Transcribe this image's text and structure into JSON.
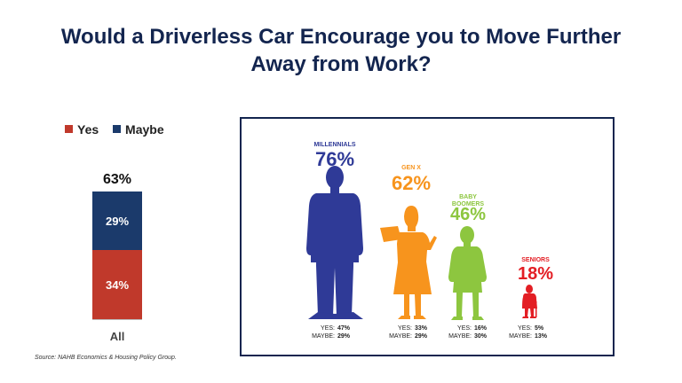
{
  "title_line1": "Would a Driverless Car Encourage you to Move Further",
  "title_line2": "Away from Work?",
  "legend": {
    "yes": "Yes",
    "maybe": "Maybe"
  },
  "colors": {
    "yes": "#c0392b",
    "maybe": "#1b3a6b",
    "millennials": "#2f3a97",
    "genx": "#f7941d",
    "boomers": "#8dc63f",
    "seniors": "#e31e24"
  },
  "bar": {
    "category": "All",
    "total_label": "63%",
    "yes_label": "34%",
    "maybe_label": "29%"
  },
  "source": "Source: NAHB Economics & Housing Policy Group.",
  "generations": [
    {
      "name_lines": [
        "MILLENNIALS"
      ],
      "pct": "76%",
      "yes_text": "47%",
      "maybe_text": "29%"
    },
    {
      "name_lines": [
        "GEN X"
      ],
      "pct": "62%",
      "yes_text": "33%",
      "maybe_text": "29%"
    },
    {
      "name_lines": [
        "BABY",
        "BOOMERS"
      ],
      "pct": "46%",
      "yes_text": "16%",
      "maybe_text": "30%"
    },
    {
      "name_lines": [
        "SENIORS"
      ],
      "pct": "18%",
      "yes_text": "5%",
      "maybe_text": "13%"
    }
  ],
  "stat_labels": {
    "yes": "YES:",
    "maybe": "MAYBE:"
  },
  "chart_data": [
    {
      "type": "bar",
      "stacked": true,
      "categories": [
        "All"
      ],
      "series": [
        {
          "name": "Yes",
          "values": [
            34
          ]
        },
        {
          "name": "Maybe",
          "values": [
            29
          ]
        }
      ],
      "total": [
        63
      ],
      "title": "",
      "xlabel": "",
      "ylabel": "",
      "ylim": [
        0,
        63
      ],
      "legend": "top-left"
    },
    {
      "type": "bar",
      "categories": [
        "MILLENNIALS",
        "GEN X",
        "BABY BOOMERS",
        "SENIORS"
      ],
      "values": [
        76,
        62,
        46,
        18
      ],
      "yes": [
        47,
        33,
        16,
        5
      ],
      "maybe": [
        29,
        29,
        30,
        13
      ],
      "title": "",
      "xlabel": "",
      "ylabel": ""
    }
  ]
}
